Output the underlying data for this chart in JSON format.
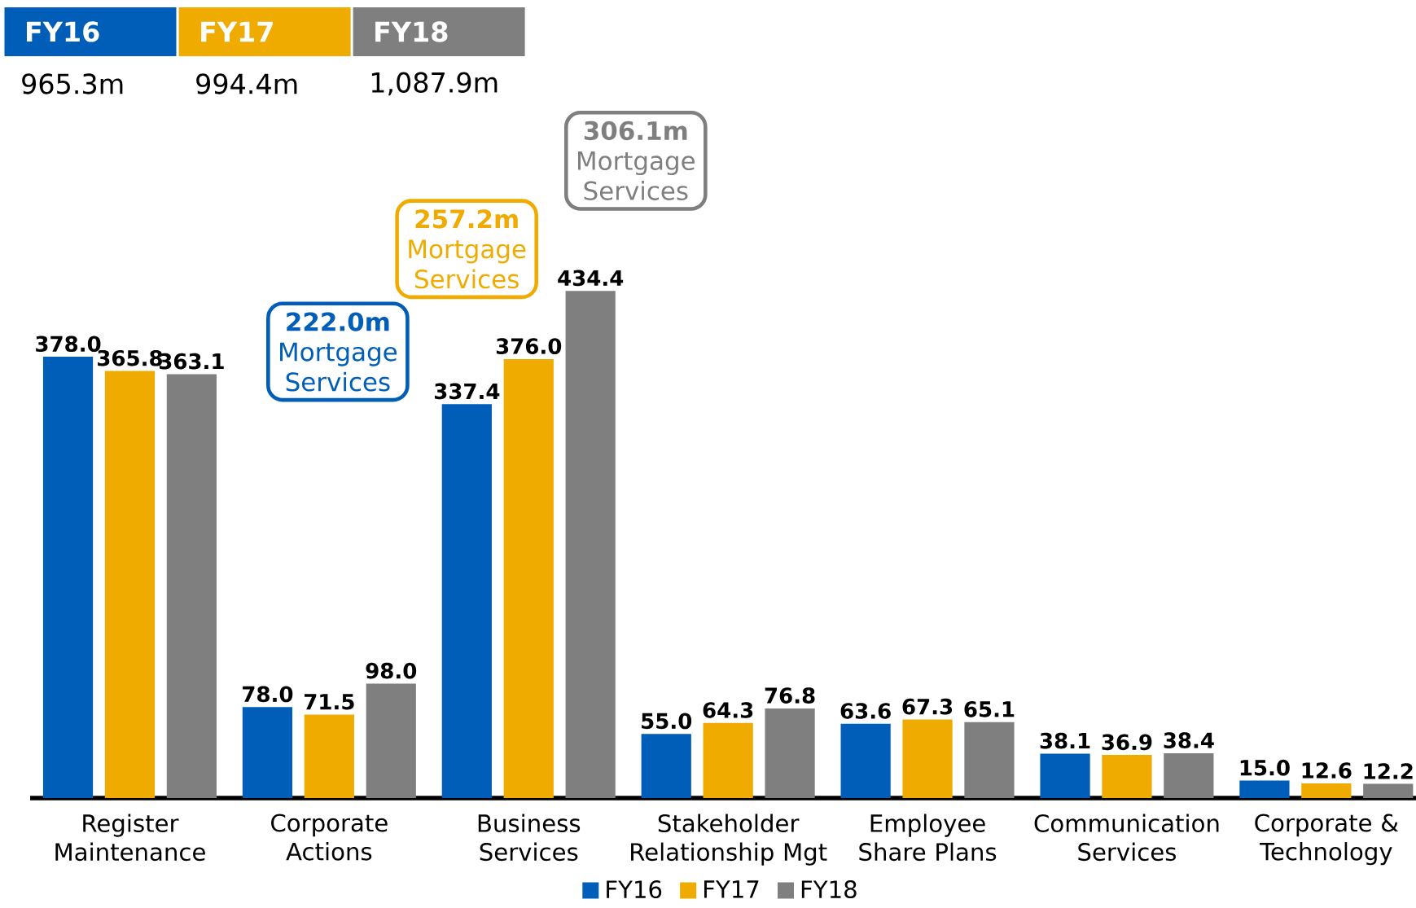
{
  "chart_data": {
    "type": "bar",
    "categories": [
      "Register Maintenance",
      "Corporate Actions",
      "Business Services",
      "Stakeholder Relationship Mgt",
      "Employee Share Plans",
      "Communication Services",
      "Corporate & Technology"
    ],
    "series": [
      {
        "name": "FY16",
        "color": "#005eb8",
        "values": [
          378.0,
          78.0,
          337.4,
          55.0,
          63.6,
          38.1,
          15.0
        ],
        "value_labels": [
          "378.0",
          "78.0",
          "337.4",
          "55.0",
          "63.6",
          "38.1",
          "15.0"
        ]
      },
      {
        "name": "FY17",
        "color": "#f0ab00",
        "values": [
          365.8,
          71.5,
          376.0,
          64.3,
          67.3,
          36.9,
          12.6
        ],
        "value_labels": [
          "365.8",
          "71.5",
          "376.0",
          "64.3",
          "67.3",
          "36.9",
          "12.6"
        ]
      },
      {
        "name": "FY18",
        "color": "#7f7f7f",
        "values": [
          363.1,
          98.0,
          434.4,
          76.8,
          65.1,
          38.4,
          12.2
        ],
        "value_labels": [
          "363.1",
          "98.0",
          "434.4",
          "76.8",
          "65.1",
          "38.4",
          "12.2"
        ]
      }
    ],
    "annotations": [
      "965.3m",
      "994.4m",
      "1,087.9m",
      "**222.0m** Mortgage Services",
      "**257.2m** Mortgage Services",
      "**306.1m** Mortgage Services"
    ],
    "legend": "bottom"
  }
}
